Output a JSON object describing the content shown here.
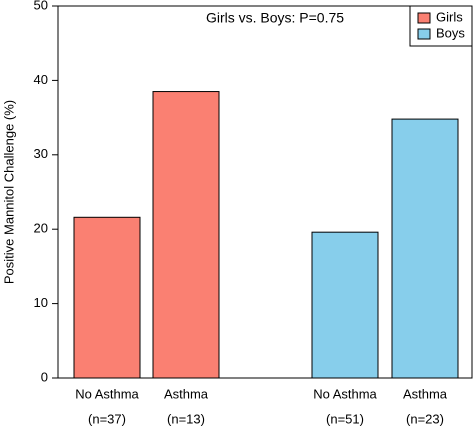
{
  "chart_data": {
    "type": "bar",
    "ylabel": "Positive Mannitol Challenge (%)",
    "annotation": "Girls vs. Boys: P=0.75",
    "categories": [
      "No Asthma",
      "Asthma",
      "No Asthma",
      "Asthma"
    ],
    "sample_sizes": [
      "(n=37)",
      "(n=13)",
      "(n=51)",
      "(n=23)"
    ],
    "series": [
      {
        "name": "Girls",
        "color": "#fa8072",
        "values": [
          21.6,
          38.5,
          null,
          null
        ]
      },
      {
        "name": "Boys",
        "color": "#87ceeb",
        "values": [
          null,
          null,
          19.6,
          34.8
        ]
      }
    ],
    "ylim": [
      0,
      50
    ],
    "yticks": [
      0,
      10,
      20,
      30,
      40,
      50
    ],
    "legend": "top-right"
  }
}
